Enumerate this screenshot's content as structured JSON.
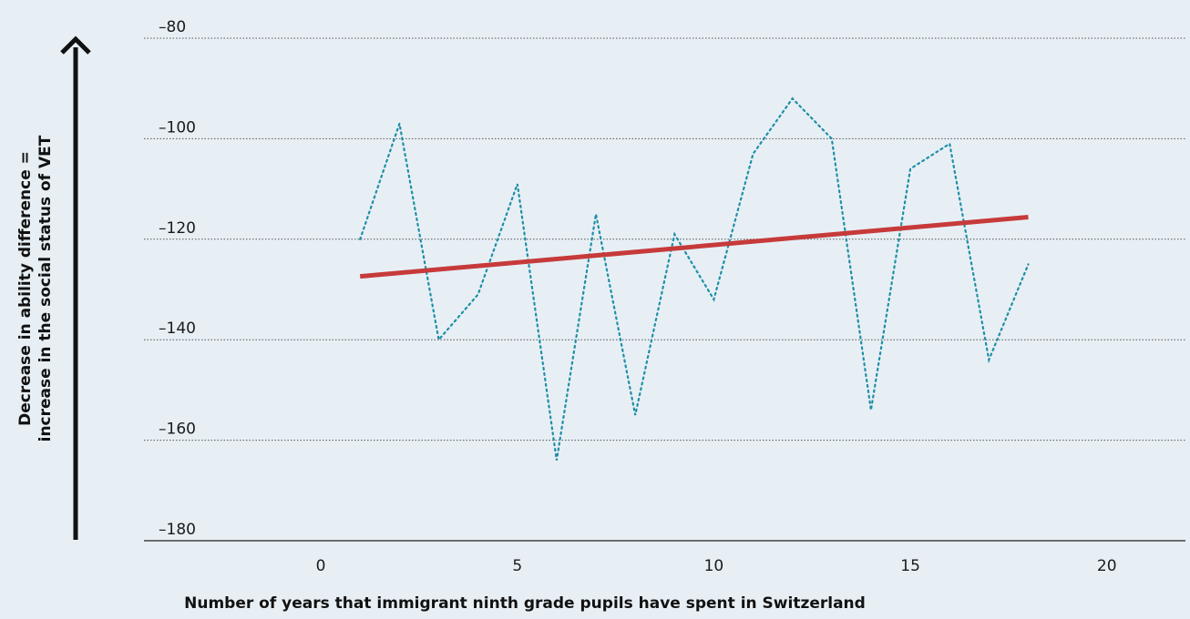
{
  "chart_data": {
    "type": "line",
    "title": "",
    "xlabel": "Number of years that immigrant ninth grade pupils have spent in Switzerland",
    "ylabel": [
      "Decrease in ability difference =",
      "increase in the social status of VET"
    ],
    "xlim": [
      -4.5,
      22
    ],
    "ylim": [
      -180,
      -80
    ],
    "x_ticks": [
      0,
      5,
      10,
      15,
      20
    ],
    "x_tick_labels": [
      "0",
      "5",
      "10",
      "15",
      "20"
    ],
    "y_ticks": [
      -80,
      -100,
      -120,
      -140,
      -160,
      -180
    ],
    "y_tick_labels": [
      "–80",
      "–100",
      "–120",
      "–140",
      "–160",
      "–180"
    ],
    "grid": "horizontal dotted",
    "legend": "none",
    "series": [
      {
        "style": "dotted",
        "color": "#1f8fa6",
        "x": [
          1,
          2,
          3,
          4,
          5,
          6,
          7,
          8,
          9,
          10,
          11,
          12,
          13,
          14,
          15,
          16,
          17,
          18
        ],
        "y": [
          -120,
          -97,
          -140,
          -131,
          -109,
          -164,
          -115,
          -155,
          -119,
          -132,
          -103,
          -92,
          -100,
          -154,
          -106,
          -101,
          -144,
          -125
        ]
      },
      {
        "style": "solid",
        "color": "#c73a3a",
        "x": [
          1,
          18
        ],
        "y": [
          -127.4,
          -115.6
        ]
      }
    ]
  }
}
